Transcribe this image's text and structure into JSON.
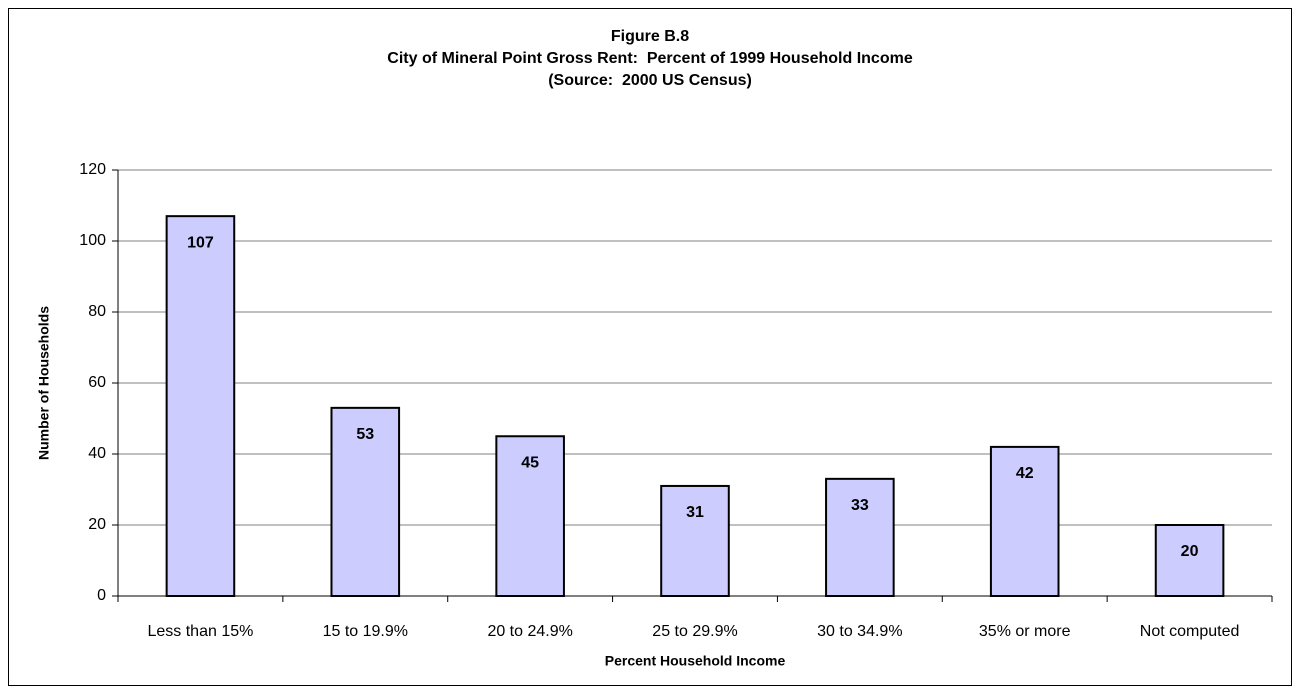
{
  "chart_data": {
    "type": "bar",
    "title": [
      "Figure B.8",
      "City of Mineral Point Gross Rent:  Percent of 1999 Household Income",
      "(Source:  2000 US Census)"
    ],
    "x_label": "Percent Household Income",
    "y_label": "Number of Households",
    "categories": [
      "Less than 15%",
      "15 to 19.9%",
      "20 to 24.9%",
      "25 to 29.9%",
      "30 to 34.9%",
      "35% or more",
      "Not computed"
    ],
    "values": [
      107,
      53,
      45,
      31,
      33,
      42,
      20
    ],
    "color": "#ccccff",
    "ylim": [
      0,
      120
    ],
    "yticks": [
      0,
      20,
      40,
      60,
      80,
      100,
      120
    ],
    "grid": true
  }
}
